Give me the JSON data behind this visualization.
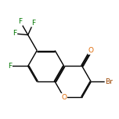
{
  "bg_color": "#ffffff",
  "bond_color": "#000000",
  "atom_colors": {
    "O": "#dd6600",
    "Br": "#994400",
    "F": "#007700",
    "C": "#000000"
  },
  "figsize": [
    1.52,
    1.52
  ],
  "dpi": 100
}
